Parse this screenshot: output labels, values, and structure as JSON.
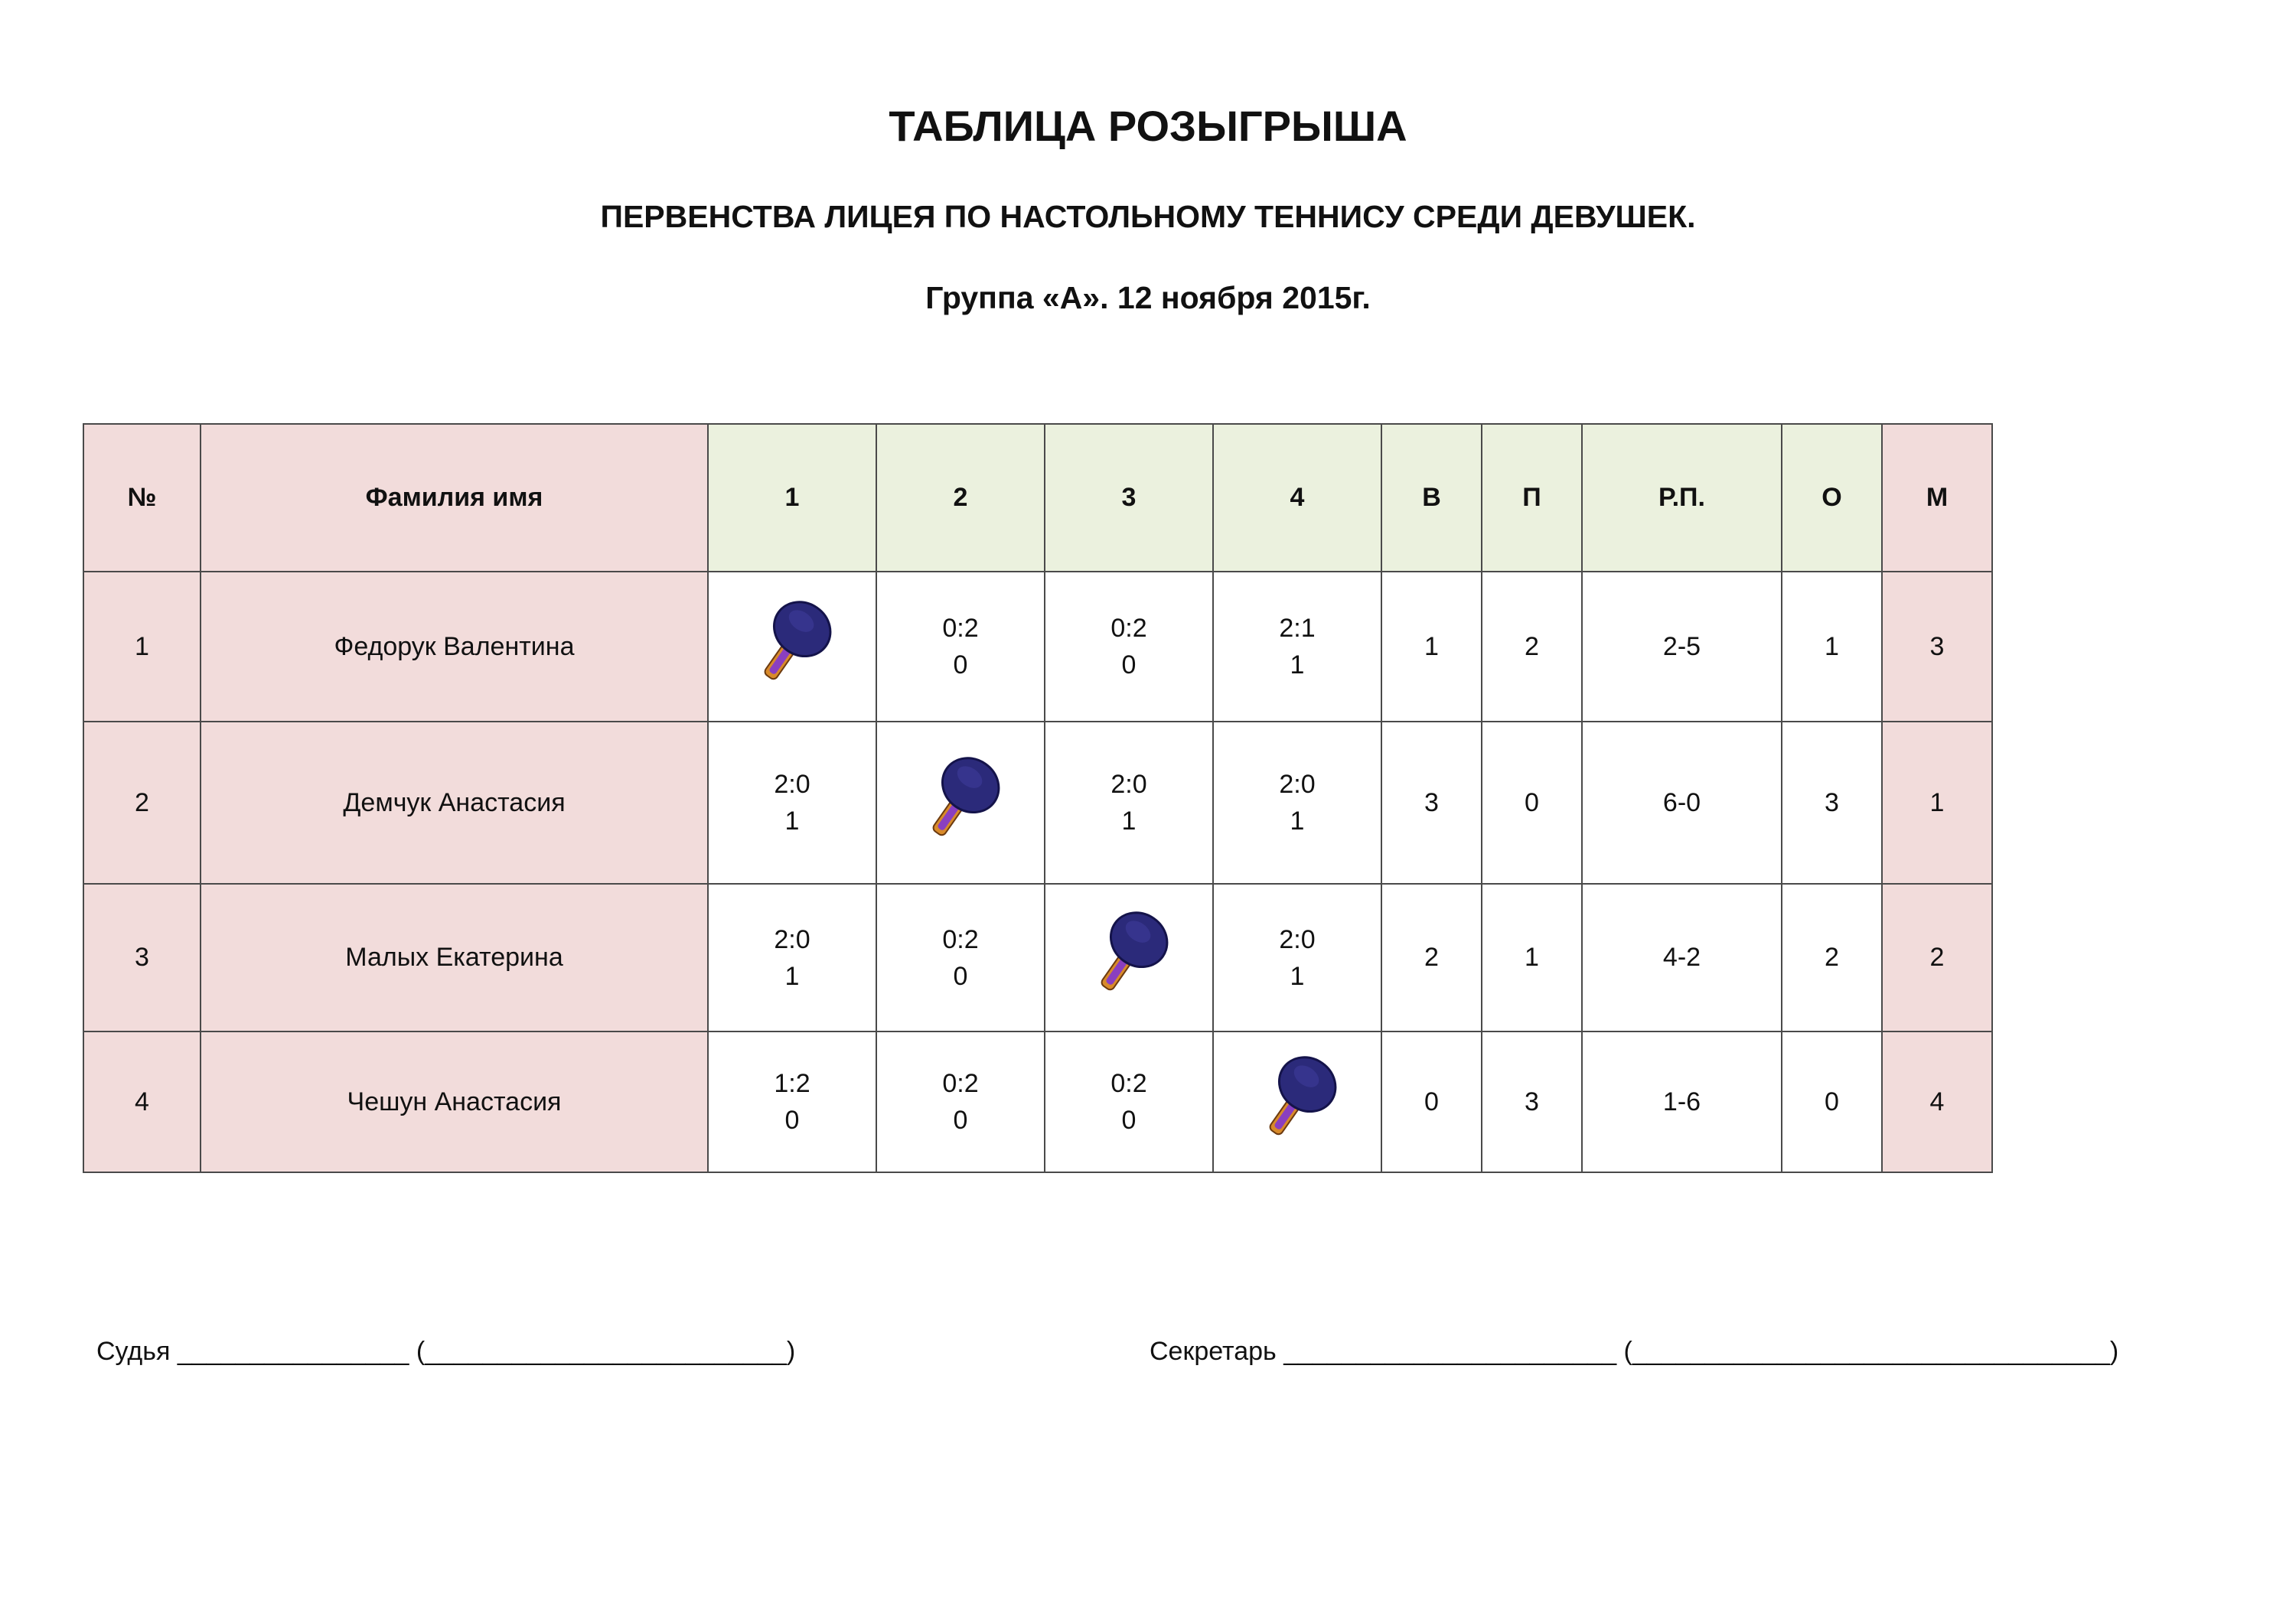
{
  "header": {
    "title": "ТАБЛИЦА РОЗЫГРЫША",
    "subtitle": "ПЕРВЕНСТВА ЛИЦЕЯ ПО НАСТОЛЬНОМУ ТЕННИСУ СРЕДИ ДЕВУШЕК.",
    "group": "Группа «А». 12 ноября 2015г."
  },
  "table": {
    "headers": [
      "№",
      "Фамилия имя",
      "1",
      "2",
      "3",
      "4",
      "В",
      "П",
      "Р.П.",
      "О",
      "М"
    ],
    "rows": [
      {
        "num": "1",
        "name": "Федорук Валентина",
        "cells": [
          {
            "icon": "table-tennis-racket-icon"
          },
          {
            "score": "0:2",
            "points": "0"
          },
          {
            "score": "0:2",
            "points": "0"
          },
          {
            "score": "2:1",
            "points": "1"
          }
        ],
        "wins": "1",
        "losses": "2",
        "sets": "2-5",
        "points": "1",
        "place": "3"
      },
      {
        "num": "2",
        "name": "Демчук Анастасия",
        "cells": [
          {
            "score": "2:0",
            "points": "1"
          },
          {
            "icon": "table-tennis-racket-icon"
          },
          {
            "score": "2:0",
            "points": "1"
          },
          {
            "score": "2:0",
            "points": "1"
          }
        ],
        "wins": "3",
        "losses": "0",
        "sets": "6-0",
        "points": "3",
        "place": "1"
      },
      {
        "num": "3",
        "name": "Малых Екатерина",
        "cells": [
          {
            "score": "2:0",
            "points": "1"
          },
          {
            "score": "0:2",
            "points": "0"
          },
          {
            "icon": "table-tennis-racket-icon"
          },
          {
            "score": "2:0",
            "points": "1"
          }
        ],
        "wins": "2",
        "losses": "1",
        "sets": "4-2",
        "points": "2",
        "place": "2"
      },
      {
        "num": "4",
        "name": "Чешун Анастасия",
        "cells": [
          {
            "score": "1:2",
            "points": "0"
          },
          {
            "score": "0:2",
            "points": "0"
          },
          {
            "score": "0:2",
            "points": "0"
          },
          {
            "icon": "table-tennis-racket-icon"
          }
        ],
        "wins": "0",
        "losses": "3",
        "sets": "1-6",
        "points": "0",
        "place": "4"
      }
    ]
  },
  "footer": {
    "judge": "Судья ________________ (_________________________)",
    "secretary": "Секретарь _______________________ (_________________________________)"
  },
  "colors": {
    "pink": "#f2dcdb",
    "green": "#ebf1de"
  }
}
